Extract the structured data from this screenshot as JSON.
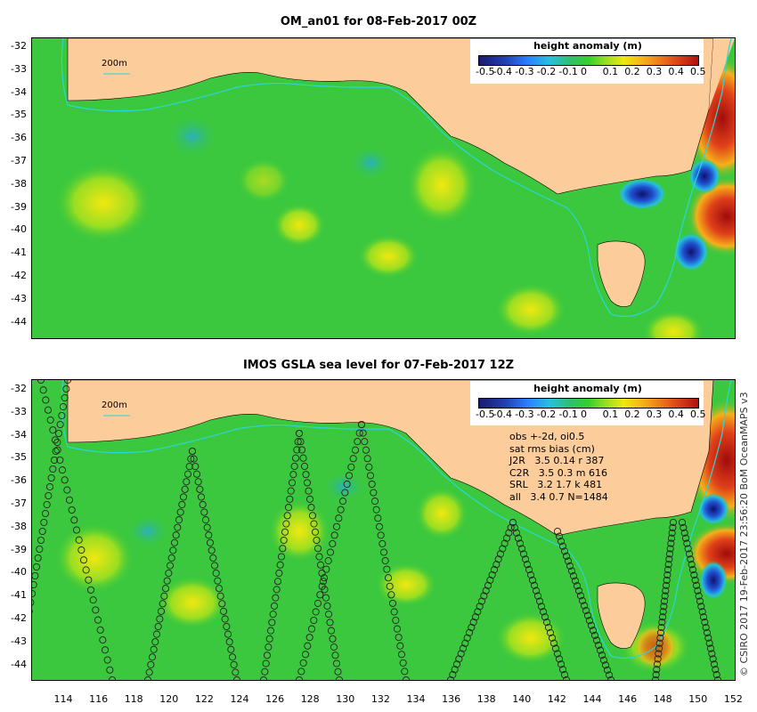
{
  "top_map": {
    "title": "OM_an01 for 08-Feb-2017 00Z",
    "legend_title": "height anomaly (m)",
    "scale_label": "200m",
    "y_ticks": [
      "-32",
      "-33",
      "-34",
      "-35",
      "-36",
      "-37",
      "-38",
      "-39",
      "-40",
      "-41",
      "-42",
      "-43",
      "-44"
    ]
  },
  "bottom_map": {
    "title": "IMOS GSLA sea level  for 07-Feb-2017 12Z",
    "legend_title": "height anomaly (m)",
    "scale_label": "200m",
    "y_ticks": [
      "-32",
      "-33",
      "-34",
      "-35",
      "-36",
      "-37",
      "-38",
      "-39",
      "-40",
      "-41",
      "-42",
      "-43",
      "-44"
    ],
    "stats": {
      "line1": "obs +-2d, oi0.5",
      "line2": "sat rms bias (cm)",
      "line3": "J2R   3.5 0.14 r 387",
      "line4": "C2R   3.5 0.3 m 616",
      "line5": "SRL   3.2 1.7 k 481",
      "line6": "all   3.4 0.7 N=1484"
    }
  },
  "legend_ticks": [
    "-0.5",
    "-0.4",
    "-0.3",
    "-0.2",
    "-0.1",
    "0",
    "0.1",
    "0.2",
    "0.3",
    "0.4",
    "0.5"
  ],
  "x_ticks": [
    "114",
    "116",
    "118",
    "120",
    "122",
    "124",
    "126",
    "128",
    "130",
    "132",
    "134",
    "136",
    "138",
    "140",
    "142",
    "144",
    "146",
    "148",
    "150",
    "152"
  ],
  "credit": "© CSIRO 2017  19-Feb-2017 23:56:20 BoM OceanMAPS v3",
  "colors": {
    "land": "#fccc9a",
    "ocean_base": "#36c83c",
    "contour_200m": "#2ad6d6",
    "positive_high": "#b01010",
    "negative_low": "#1a1a8e"
  }
}
